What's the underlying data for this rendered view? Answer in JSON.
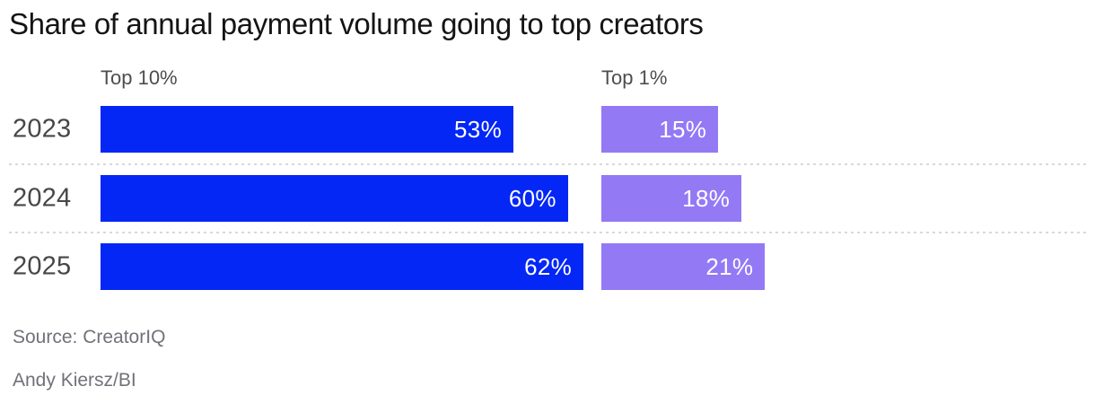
{
  "title": "Share of annual payment volume going to top creators",
  "columns": [
    {
      "label": "Top 10%"
    },
    {
      "label": "Top 1%"
    }
  ],
  "chart_data": {
    "type": "bar",
    "orientation": "horizontal",
    "title": "Share of annual payment volume going to top creators",
    "categories": [
      "2023",
      "2024",
      "2025"
    ],
    "series": [
      {
        "name": "Top 10%",
        "color": "#0527f5",
        "values": [
          53,
          60,
          62
        ],
        "labels": [
          "53%",
          "60%",
          "62%"
        ]
      },
      {
        "name": "Top 1%",
        "color": "#9479f5",
        "values": [
          15,
          18,
          21
        ],
        "labels": [
          "15%",
          "18%",
          "21%"
        ]
      }
    ],
    "value_format": "percent",
    "xlim": [
      0,
      100
    ],
    "grid": false,
    "legend_position": "column-headers",
    "row_separator_style": "dotted"
  },
  "footer": {
    "source": "Source: CreatorIQ",
    "byline": "Andy Kiersz/BI"
  },
  "colors": {
    "top10_bar": "#0527f5",
    "top1_bar": "#9479f5",
    "bar_value_text": "#ffffff",
    "title_text": "#141414",
    "axis_text": "#474747",
    "header_text": "#4d4d4d",
    "footer_text": "#717179",
    "separator": "#d9d9d9",
    "background": "#ffffff"
  }
}
